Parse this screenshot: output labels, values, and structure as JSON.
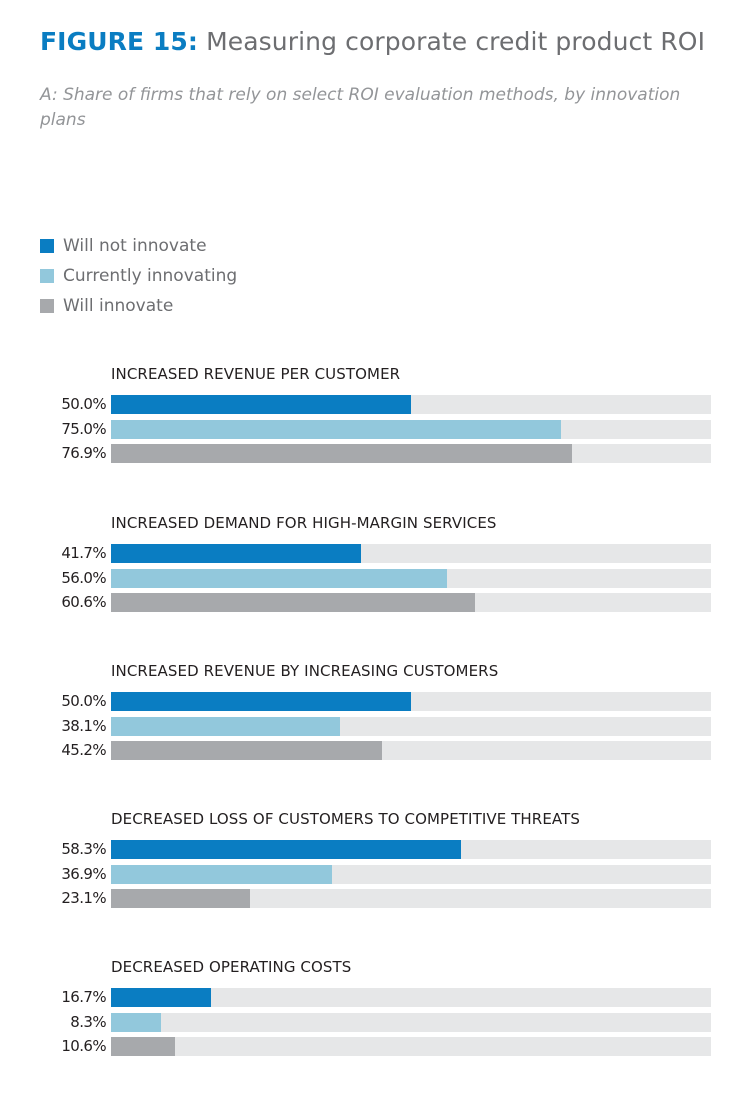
{
  "header": {
    "figure_label": "FIGURE 15:",
    "title": "Measuring corporate credit product ROI",
    "subtitle": "A: Share of firms that rely on select ROI evaluation methods, by innovation plans"
  },
  "colors": {
    "accent": "#0a7dc2",
    "will_not_innovate": "#0a7dc2",
    "currently_innovating": "#92c8dc",
    "will_innovate": "#a7a9ac",
    "track": "#e6e7e8"
  },
  "chart_data": {
    "type": "bar",
    "orientation": "horizontal",
    "title": "Measuring corporate credit product ROI",
    "subtitle": "A: Share of firms that rely on select ROI evaluation methods, by innovation plans",
    "xlabel": "",
    "ylabel": "",
    "xlim": [
      0,
      100
    ],
    "unit": "%",
    "grid": false,
    "legend_position": "top-left",
    "legend": [
      "Will not innovate",
      "Currently innovating",
      "Will innovate"
    ],
    "categories": [
      "INCREASED REVENUE PER CUSTOMER",
      "INCREASED DEMAND FOR HIGH-MARGIN SERVICES",
      "INCREASED REVENUE BY INCREASING CUSTOMERS",
      "DECREASED LOSS OF CUSTOMERS TO COMPETITIVE THREATS",
      "DECREASED OPERATING COSTS"
    ],
    "series": [
      {
        "name": "Will not innovate",
        "color": "#0a7dc2",
        "values": [
          50.0,
          41.7,
          50.0,
          58.3,
          16.7
        ],
        "labels": [
          "50.0%",
          "41.7%",
          "50.0%",
          "58.3%",
          "16.7%"
        ]
      },
      {
        "name": "Currently innovating",
        "color": "#92c8dc",
        "values": [
          75.0,
          56.0,
          38.1,
          36.9,
          8.3
        ],
        "labels": [
          "75.0%",
          "56.0%",
          "38.1%",
          "36.9%",
          "8.3%"
        ]
      },
      {
        "name": "Will innovate",
        "color": "#a7a9ac",
        "values": [
          76.9,
          60.6,
          45.2,
          23.1,
          10.6
        ],
        "labels": [
          "76.9%",
          "60.6%",
          "45.2%",
          "23.1%",
          "10.6%"
        ]
      }
    ]
  }
}
